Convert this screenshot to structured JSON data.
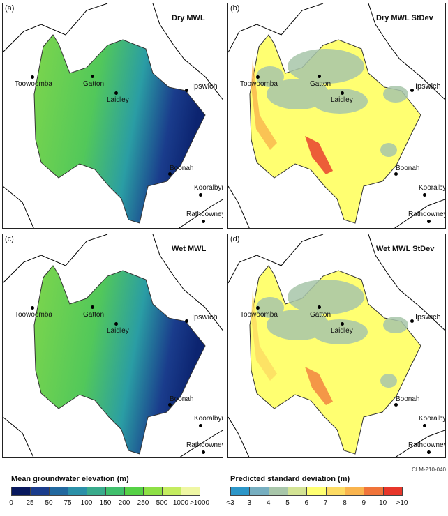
{
  "panels": [
    {
      "label": "(a)",
      "title": "Dry MWL"
    },
    {
      "label": "(b)",
      "title": "Dry MWL StDev"
    },
    {
      "label": "(c)",
      "title": "Wet MWL"
    },
    {
      "label": "(d)",
      "title": "Wet MWL StDev"
    }
  ],
  "towns": {
    "toowoomba": "Toowoomba",
    "gatton": "Gatton",
    "laidley": "Laidley",
    "ipswich": "Ipswich",
    "boonah": "Boonah",
    "kooralbyn": "Kooralbyn",
    "rathdowney": "Rathdowney"
  },
  "figure_code": "CLM-210-040",
  "legend_elevation": {
    "title": "Mean groundwater elevation (m)",
    "colors": [
      "#08185e",
      "#1a3c8c",
      "#22689f",
      "#2b90a8",
      "#3aab8c",
      "#40bf6c",
      "#56d146",
      "#8ee046",
      "#c4ec60",
      "#eff7a4"
    ],
    "ticks": [
      "0",
      "25",
      "50",
      "75",
      "100",
      "150",
      "200",
      "250",
      "500",
      "1000",
      ">1000"
    ]
  },
  "legend_stdev": {
    "title": "Predicted standard deviation (m)",
    "colors": [
      "#2c96c8",
      "#76aec0",
      "#a8c6aa",
      "#d3e394",
      "#ffff71",
      "#fddb63",
      "#f9b44e",
      "#f0743a",
      "#e7362a"
    ],
    "ticks": [
      "<3",
      "3",
      "4",
      "5",
      "6",
      "7",
      "8",
      "9",
      "10",
      ">10"
    ]
  }
}
